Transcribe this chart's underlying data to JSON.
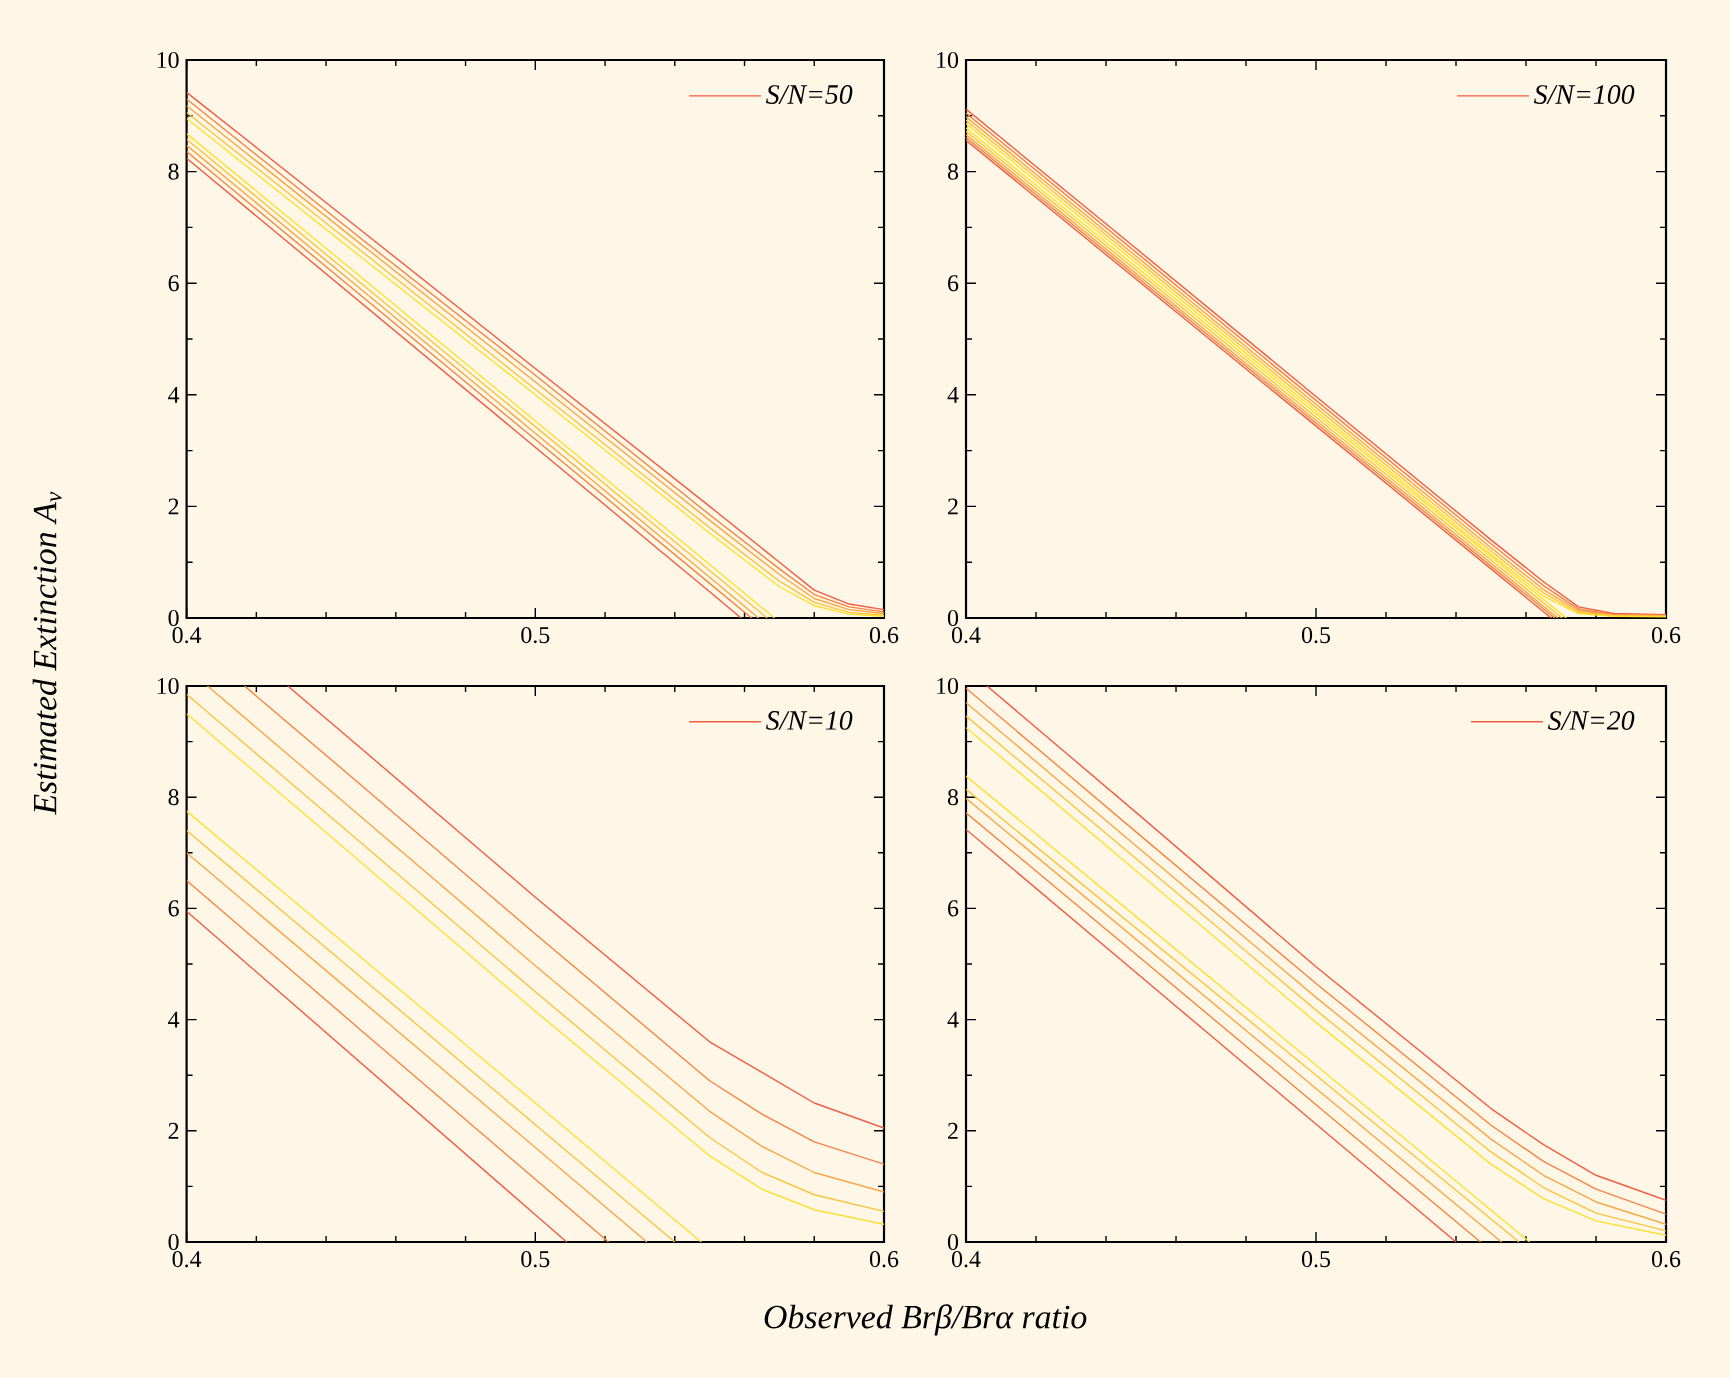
{
  "chart_data": [
    {
      "type": "line",
      "xlim": [
        0.4,
        0.6
      ],
      "ylim": [
        0,
        10
      ],
      "xticks": [
        0.4,
        0.5,
        0.6
      ],
      "yticks": [
        0,
        2,
        4,
        6,
        8,
        10
      ],
      "legend": "top right",
      "series": [
        {
          "name": "S/N=50",
          "color": "#f25c3f",
          "x": [
            0.4,
            0.45,
            0.5,
            0.55,
            0.57,
            0.58,
            0.59,
            0.6
          ],
          "values": [
            9.42,
            6.95,
            4.47,
            2.0,
            1.0,
            0.5,
            0.25,
            0.15
          ]
        },
        {
          "color": "#f6843e",
          "x": [
            0.4,
            0.45,
            0.5,
            0.55,
            0.57,
            0.58,
            0.59,
            0.6
          ],
          "values": [
            9.3,
            6.8,
            4.35,
            1.85,
            0.88,
            0.42,
            0.2,
            0.11
          ]
        },
        {
          "color": "#f9a642",
          "x": [
            0.4,
            0.45,
            0.5,
            0.55,
            0.57,
            0.58,
            0.59,
            0.6
          ],
          "values": [
            9.18,
            6.7,
            4.23,
            1.75,
            0.78,
            0.35,
            0.15,
            0.08
          ]
        },
        {
          "color": "#fbc43a",
          "x": [
            0.4,
            0.45,
            0.5,
            0.55,
            0.57,
            0.58,
            0.59,
            0.6
          ],
          "values": [
            9.06,
            6.58,
            4.1,
            1.62,
            0.66,
            0.28,
            0.1,
            0.05
          ]
        },
        {
          "color": "#fde02d",
          "x": [
            0.4,
            0.45,
            0.5,
            0.55,
            0.57,
            0.58,
            0.59,
            0.6
          ],
          "values": [
            8.95,
            6.47,
            4.0,
            1.52,
            0.56,
            0.22,
            0.07,
            0.03
          ]
        },
        {
          "color": "#fde02d",
          "x": [
            0.4,
            0.45,
            0.5,
            0.55,
            0.5686
          ],
          "values": [
            8.68,
            6.11,
            3.53,
            0.96,
            0
          ]
        },
        {
          "color": "#fbc43a",
          "x": [
            0.4,
            0.45,
            0.5,
            0.55,
            0.5665
          ],
          "values": [
            8.58,
            6.0,
            3.43,
            0.85,
            0
          ]
        },
        {
          "color": "#f9a642",
          "x": [
            0.4,
            0.45,
            0.5,
            0.55,
            0.564
          ],
          "values": [
            8.47,
            5.89,
            3.31,
            0.73,
            0
          ]
        },
        {
          "color": "#f6843e",
          "x": [
            0.4,
            0.45,
            0.5,
            0.55,
            0.562
          ],
          "values": [
            8.36,
            5.78,
            3.2,
            0.62,
            0
          ]
        },
        {
          "color": "#f25c3f",
          "x": [
            0.4,
            0.45,
            0.5,
            0.55,
            0.559
          ],
          "values": [
            8.24,
            5.65,
            3.06,
            0.47,
            0
          ]
        }
      ]
    },
    {
      "type": "line",
      "xlim": [
        0.4,
        0.6
      ],
      "ylim": [
        0,
        10
      ],
      "xticks": [
        0.4,
        0.5,
        0.6
      ],
      "yticks": [
        0,
        2,
        4,
        6,
        8,
        10
      ],
      "legend": "top right",
      "series": [
        {
          "name": "S/N=100",
          "color": "#f25c3f",
          "x": [
            0.4,
            0.45,
            0.5,
            0.55,
            0.565,
            0.575,
            0.585,
            0.6
          ],
          "values": [
            9.12,
            6.55,
            3.97,
            1.4,
            0.65,
            0.2,
            0.08,
            0.06
          ]
        },
        {
          "color": "#f6843e",
          "x": [
            0.4,
            0.45,
            0.5,
            0.55,
            0.565,
            0.575,
            0.585,
            0.6
          ],
          "values": [
            9.05,
            6.48,
            3.9,
            1.33,
            0.58,
            0.16,
            0.06,
            0.05
          ]
        },
        {
          "color": "#f9a642",
          "x": [
            0.4,
            0.45,
            0.5,
            0.55,
            0.565,
            0.575,
            0.585,
            0.6
          ],
          "values": [
            8.98,
            6.41,
            3.83,
            1.26,
            0.51,
            0.13,
            0.05,
            0.04
          ]
        },
        {
          "color": "#fbc43a",
          "x": [
            0.4,
            0.45,
            0.5,
            0.55,
            0.565,
            0.575,
            0.585,
            0.6
          ],
          "values": [
            8.92,
            6.35,
            3.77,
            1.2,
            0.45,
            0.1,
            0.04,
            0.03
          ]
        },
        {
          "color": "#fde02d",
          "x": [
            0.4,
            0.45,
            0.5,
            0.55,
            0.565,
            0.575,
            0.585,
            0.6
          ],
          "values": [
            8.86,
            6.29,
            3.71,
            1.14,
            0.39,
            0.08,
            0.03,
            0.02
          ]
        },
        {
          "color": "#fde02d",
          "x": [
            0.4,
            0.45,
            0.5,
            0.55,
            0.5715
          ],
          "values": [
            8.78,
            6.22,
            3.66,
            1.1,
            0
          ]
        },
        {
          "color": "#fbc43a",
          "x": [
            0.4,
            0.45,
            0.5,
            0.55,
            0.5703
          ],
          "values": [
            8.72,
            6.16,
            3.6,
            1.04,
            0
          ]
        },
        {
          "color": "#f9a642",
          "x": [
            0.4,
            0.45,
            0.5,
            0.55,
            0.5691
          ],
          "values": [
            8.66,
            6.1,
            3.54,
            0.98,
            0
          ]
        },
        {
          "color": "#f6843e",
          "x": [
            0.4,
            0.45,
            0.5,
            0.55,
            0.5682
          ],
          "values": [
            8.61,
            6.05,
            3.49,
            0.93,
            0
          ]
        },
        {
          "color": "#f25c3f",
          "x": [
            0.4,
            0.45,
            0.5,
            0.55,
            0.5672
          ],
          "values": [
            8.56,
            6.0,
            3.44,
            0.88,
            0
          ]
        }
      ]
    },
    {
      "type": "line",
      "xlim": [
        0.4,
        0.6
      ],
      "ylim": [
        0,
        10
      ],
      "xticks": [
        0.4,
        0.5,
        0.6
      ],
      "yticks": [
        0,
        2,
        4,
        6,
        8,
        10
      ],
      "legend": "top right",
      "xlabel": "Observed Brβ/Brα ratio",
      "ylabel": "Estimated Extinction A$_{v}$",
      "series": [
        {
          "name": "S/N=10",
          "color": "#f25c3f",
          "x": [
            0.429,
            0.45,
            0.5,
            0.55,
            0.565,
            0.58,
            0.6
          ],
          "values": [
            10,
            8.88,
            6.2,
            3.6,
            3.05,
            2.5,
            2.05
          ]
        },
        {
          "color": "#f6843e",
          "x": [
            0.4166,
            0.45,
            0.5,
            0.55,
            0.565,
            0.58,
            0.6
          ],
          "values": [
            10,
            8.22,
            5.54,
            2.9,
            2.3,
            1.8,
            1.4
          ]
        },
        {
          "color": "#f9a642",
          "x": [
            0.406,
            0.45,
            0.5,
            0.55,
            0.565,
            0.58,
            0.6
          ],
          "values": [
            10,
            7.65,
            4.97,
            2.35,
            1.72,
            1.25,
            0.9
          ]
        },
        {
          "color": "#fbc43a",
          "x": [
            0.4,
            0.45,
            0.5,
            0.55,
            0.565,
            0.58,
            0.6
          ],
          "values": [
            9.85,
            7.18,
            4.5,
            1.88,
            1.25,
            0.85,
            0.55
          ]
        },
        {
          "color": "#fde02d",
          "x": [
            0.4,
            0.45,
            0.5,
            0.55,
            0.565,
            0.58,
            0.6
          ],
          "values": [
            9.5,
            6.83,
            4.15,
            1.55,
            0.95,
            0.58,
            0.32
          ]
        },
        {
          "color": "#fde02d",
          "x": [
            0.4,
            0.45,
            0.5,
            0.5476
          ],
          "values": [
            7.75,
            5.12,
            2.5,
            0
          ]
        },
        {
          "color": "#fbc43a",
          "x": [
            0.4,
            0.45,
            0.5,
            0.54
          ],
          "values": [
            7.4,
            4.76,
            2.11,
            0
          ]
        },
        {
          "color": "#f9a642",
          "x": [
            0.4,
            0.45,
            0.5,
            0.532
          ],
          "values": [
            7.0,
            4.35,
            1.7,
            0
          ]
        },
        {
          "color": "#f6843e",
          "x": [
            0.4,
            0.45,
            0.5,
            0.521
          ],
          "values": [
            6.5,
            3.81,
            1.13,
            0
          ]
        },
        {
          "color": "#f25c3f",
          "x": [
            0.4,
            0.45,
            0.5,
            0.509
          ],
          "values": [
            5.95,
            3.22,
            0.49,
            0
          ]
        }
      ]
    },
    {
      "type": "line",
      "xlim": [
        0.4,
        0.6
      ],
      "ylim": [
        0,
        10
      ],
      "xticks": [
        0.4,
        0.5,
        0.6
      ],
      "yticks": [
        0,
        2,
        4,
        6,
        8,
        10
      ],
      "legend": "top right",
      "series": [
        {
          "name": "S/N=20",
          "color": "#f25c3f",
          "x": [
            0.406,
            0.45,
            0.5,
            0.55,
            0.565,
            0.58,
            0.6
          ],
          "values": [
            10,
            7.65,
            4.95,
            2.4,
            1.75,
            1.2,
            0.75
          ]
        },
        {
          "color": "#f6843e",
          "x": [
            0.4,
            0.45,
            0.5,
            0.55,
            0.565,
            0.58,
            0.6
          ],
          "values": [
            9.96,
            7.3,
            4.65,
            2.1,
            1.45,
            0.95,
            0.5
          ]
        },
        {
          "color": "#f9a642",
          "x": [
            0.4,
            0.45,
            0.5,
            0.55,
            0.565,
            0.58,
            0.6
          ],
          "values": [
            9.7,
            7.05,
            4.4,
            1.85,
            1.2,
            0.72,
            0.32
          ]
        },
        {
          "color": "#fbc43a",
          "x": [
            0.4,
            0.45,
            0.5,
            0.55,
            0.565,
            0.58,
            0.6
          ],
          "values": [
            9.46,
            6.82,
            4.17,
            1.62,
            0.98,
            0.52,
            0.2
          ]
        },
        {
          "color": "#fde02d",
          "x": [
            0.4,
            0.45,
            0.5,
            0.55,
            0.565,
            0.58,
            0.6
          ],
          "values": [
            9.25,
            6.6,
            3.95,
            1.4,
            0.78,
            0.38,
            0.12
          ]
        },
        {
          "color": "#fde02d",
          "x": [
            0.4,
            0.45,
            0.5,
            0.561
          ],
          "values": [
            8.38,
            5.78,
            3.18,
            0
          ]
        },
        {
          "color": "#fbc43a",
          "x": [
            0.4,
            0.45,
            0.5,
            0.558
          ],
          "values": [
            8.14,
            5.57,
            3.0,
            0
          ]
        },
        {
          "color": "#f9a642",
          "x": [
            0.4,
            0.45,
            0.5,
            0.553
          ],
          "values": [
            7.98,
            5.37,
            2.76,
            0
          ]
        },
        {
          "color": "#f6843e",
          "x": [
            0.4,
            0.45,
            0.5,
            0.547
          ],
          "values": [
            7.72,
            5.1,
            2.47,
            0
          ]
        },
        {
          "color": "#f25c3f",
          "x": [
            0.4,
            0.45,
            0.5,
            0.54
          ],
          "values": [
            7.42,
            4.77,
            2.12,
            0
          ]
        }
      ]
    }
  ]
}
